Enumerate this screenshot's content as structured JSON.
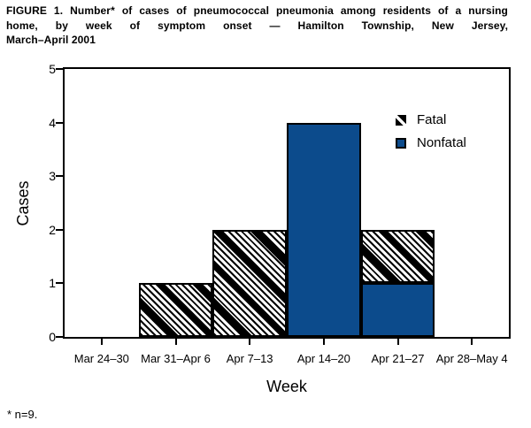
{
  "figure": {
    "title_lines": [
      "FIGURE 1. Number* of cases of pneumococcal pneumonia among residents of a nursing",
      "home, by week of symptom onset — Hamilton Township, New Jersey,",
      "March–April 2001"
    ],
    "footnote": "* n=9."
  },
  "chart_data": {
    "type": "bar",
    "stacked": true,
    "xlabel": "Week",
    "ylabel": "Cases",
    "ylim": [
      0,
      5
    ],
    "yticks": [
      0,
      1,
      2,
      3,
      4,
      5
    ],
    "grid": false,
    "frame": true,
    "categories": [
      "Mar 24–30",
      "Mar 31–Apr 6",
      "Apr 7–13",
      "Apr 14–20",
      "Apr 21–27",
      "Apr 28–May 4"
    ],
    "series": [
      {
        "name": "Nonfatal",
        "stack_position": "bottom",
        "fill": "solid",
        "color": "#0C4B8C",
        "values": [
          0,
          0,
          0,
          4,
          1,
          0
        ]
      },
      {
        "name": "Fatal",
        "stack_position": "top",
        "fill": "diagonal-hatch",
        "color": "#000000",
        "values": [
          0,
          1,
          2,
          0,
          1,
          0
        ]
      }
    ],
    "totals_per_week": [
      0,
      1,
      2,
      4,
      2,
      0
    ],
    "legend": {
      "position": "inside-top-right",
      "entries": [
        "Fatal",
        "Nonfatal"
      ]
    }
  },
  "colors": {
    "nonfatal": "#0C4B8C",
    "ink": "#000000",
    "background": "#FFFFFF"
  }
}
